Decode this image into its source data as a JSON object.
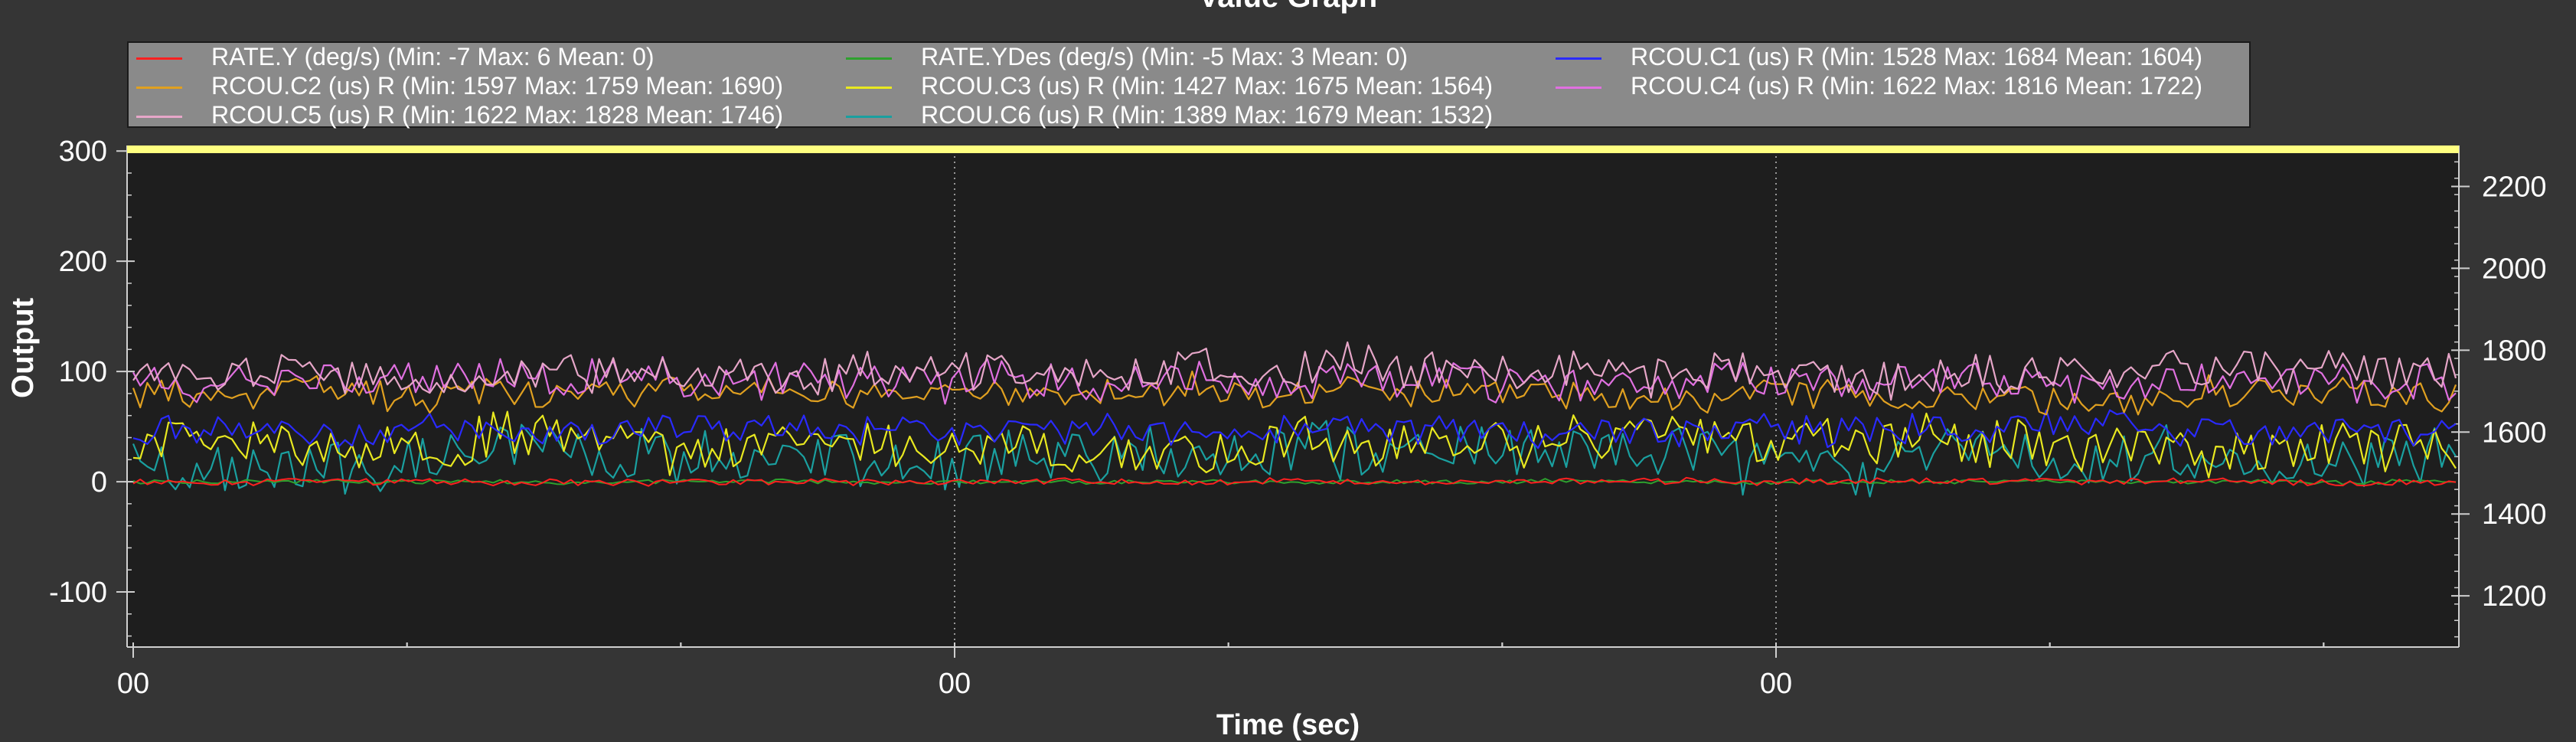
{
  "window": {
    "title": "Value Graph"
  },
  "chart_data": {
    "type": "line",
    "title": "Value Graph",
    "xlabel": "Time (sec)",
    "ylabel": "Output",
    "x_tick_labels": [
      "00",
      "00",
      "00"
    ],
    "y_left_ticks": [
      300,
      200,
      100,
      0,
      -100
    ],
    "y_right_ticks": [
      2200,
      2000,
      1800,
      1600,
      1400,
      1200
    ],
    "ylim_left": [
      -150,
      305
    ],
    "ylim_right": [
      1075,
      2300
    ],
    "grid": "vertical-dotted",
    "legend_position": "top",
    "top_band_color": "#ffff80",
    "series": [
      {
        "name": "RATE.Y (deg/s) (Min: -7 Max: 6 Mean: 0)",
        "axis": "left",
        "color": "#ff2020",
        "min": -7,
        "max": 6,
        "mean": 0
      },
      {
        "name": "RATE.YDes (deg/s) (Min: -5 Max: 3 Mean: 0)",
        "axis": "left",
        "color": "#2ea12e",
        "min": -5,
        "max": 3,
        "mean": 0
      },
      {
        "name": "RCOU.C1 (us) R (Min: 1528 Max: 1684 Mean: 1604)",
        "axis": "right",
        "color": "#2a2aff",
        "min": 1528,
        "max": 1684,
        "mean": 1604
      },
      {
        "name": "RCOU.C2 (us) R (Min: 1597 Max: 1759 Mean: 1690)",
        "axis": "right",
        "color": "#e0a020",
        "min": 1597,
        "max": 1759,
        "mean": 1690
      },
      {
        "name": "RCOU.C3 (us) R (Min: 1427 Max: 1675 Mean: 1564)",
        "axis": "right",
        "color": "#e8e820",
        "min": 1427,
        "max": 1675,
        "mean": 1564
      },
      {
        "name": "RCOU.C4 (us) R (Min: 1622 Max: 1816 Mean: 1722)",
        "axis": "right",
        "color": "#e070e0",
        "min": 1622,
        "max": 1816,
        "mean": 1722
      },
      {
        "name": "RCOU.C5 (us) R (Min: 1622 Max: 1828 Mean: 1746)",
        "axis": "right",
        "color": "#e6a6c8",
        "min": 1622,
        "max": 1828,
        "mean": 1746
      },
      {
        "name": "RCOU.C6 (us) R (Min: 1389 Max: 1679 Mean: 1532)",
        "axis": "right",
        "color": "#1aa0a0",
        "min": 1389,
        "max": 1679,
        "mean": 1532
      }
    ]
  }
}
